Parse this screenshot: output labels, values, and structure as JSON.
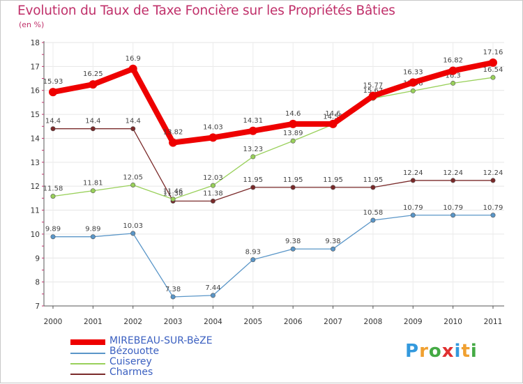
{
  "chart_data": {
    "type": "line",
    "title": "Evolution du Taux de Taxe Foncière sur les Propriétés Bâties",
    "subtitle": "(en %)",
    "x": [
      "2000",
      "2001",
      "2002",
      "2003",
      "2004",
      "2005",
      "2006",
      "2007",
      "2008",
      "2009",
      "2010",
      "2011"
    ],
    "ylim": [
      7,
      18
    ],
    "yticks": [
      "7",
      "8",
      "9",
      "10",
      "11",
      "12",
      "13",
      "14",
      "15",
      "16",
      "17",
      "18"
    ],
    "grid": true,
    "legend_position": "bottom-left",
    "series": [
      {
        "name": "Charmes",
        "color": "#7a2a2a",
        "values": [
          14.4,
          14.4,
          14.4,
          11.38,
          11.38,
          11.95,
          11.95,
          11.95,
          11.95,
          12.24,
          12.24,
          12.24
        ],
        "labels": [
          "14.4",
          "14.4",
          "14.4",
          "11.38",
          "11.38",
          "11.95",
          "11.95",
          "11.95",
          "11.95",
          "12.24",
          "12.24",
          "12.24"
        ]
      },
      {
        "name": "Cuiserey",
        "color": "#99d05a",
        "values": [
          11.58,
          11.81,
          12.05,
          11.46,
          12.03,
          13.23,
          13.89,
          14.58,
          15.67,
          15.98,
          16.3,
          16.54
        ],
        "labels": [
          "11.58",
          "11.81",
          "12.05",
          "11.46",
          "12.03",
          "13.23",
          "13.89",
          "14.58",
          "15.67",
          "15.98",
          "16.3",
          "16.54"
        ]
      },
      {
        "name": "Bézouotte",
        "color": "#5a96c8",
        "values": [
          9.89,
          9.89,
          10.03,
          7.38,
          7.44,
          8.93,
          9.38,
          9.38,
          10.58,
          10.79,
          10.79,
          10.79
        ],
        "labels": [
          "9.89",
          "9.89",
          "10.03",
          "7.38",
          "7.44",
          "8.93",
          "9.38",
          "9.38",
          "10.58",
          "10.79",
          "10.79",
          "10.79"
        ]
      },
      {
        "name": "MIREBEAU-SUR-BèZE",
        "color": "#ee0000",
        "values": [
          15.93,
          16.25,
          16.9,
          13.82,
          14.03,
          14.31,
          14.6,
          14.6,
          15.77,
          16.33,
          16.82,
          17.16
        ],
        "labels": [
          "15.93",
          "16.25",
          "16.9",
          "13.82",
          "14.03",
          "14.31",
          "14.6",
          "14.6",
          "15.77",
          "16.33",
          "16.82",
          "17.16"
        ]
      }
    ],
    "legend": [
      "MIREBEAU-SUR-BèZE",
      "Bézouotte",
      "Cuiserey",
      "Charmes"
    ]
  },
  "logo": {
    "text": [
      "P",
      "r",
      "o",
      "x",
      "i",
      "t",
      "i"
    ],
    "colors": [
      "#3399dd",
      "#f0a030",
      "#44aa44",
      "#e03030",
      "#3399dd",
      "#f0a030",
      "#44aa44"
    ]
  }
}
